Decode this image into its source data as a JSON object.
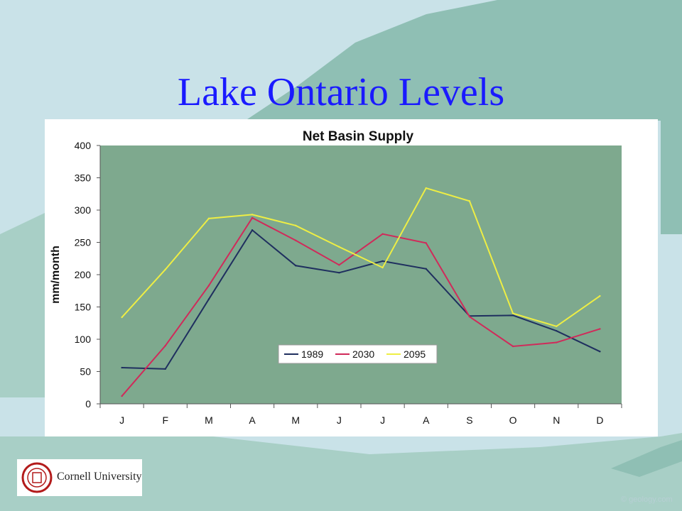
{
  "slide": {
    "title": "Lake Ontario Levels"
  },
  "logo": {
    "text": "Cornell University"
  },
  "watermark": "© geology.com",
  "colors": {
    "plot_bg": "#7ea98e",
    "grid": "#8f8f8f",
    "s1989": "#1f2f5f",
    "s2030": "#d02a5a",
    "s2095": "#eeee44",
    "title_color": "#1a1aff"
  },
  "chart_data": {
    "type": "line",
    "title": "Net Basin Supply",
    "xlabel": "",
    "ylabel": "mm/month",
    "ylim": [
      0,
      400
    ],
    "yticks": [
      0,
      50,
      100,
      150,
      200,
      250,
      300,
      350,
      400
    ],
    "categories": [
      "J",
      "F",
      "M",
      "A",
      "M",
      "J",
      "J",
      "A",
      "S",
      "O",
      "N",
      "D"
    ],
    "grid": false,
    "legend": "bottom-center",
    "series": [
      {
        "name": "1989",
        "color": "#1f2f5f",
        "values": [
          56,
          54,
          162,
          269,
          214,
          203,
          221,
          209,
          136,
          137,
          113,
          81
        ]
      },
      {
        "name": "2030",
        "color": "#d02a5a",
        "values": [
          12,
          90,
          183,
          288,
          253,
          215,
          263,
          249,
          135,
          89,
          95,
          116
        ]
      },
      {
        "name": "2095",
        "color": "#eeee44",
        "values": [
          134,
          208,
          287,
          293,
          276,
          243,
          211,
          334,
          314,
          140,
          120,
          167
        ]
      }
    ]
  }
}
